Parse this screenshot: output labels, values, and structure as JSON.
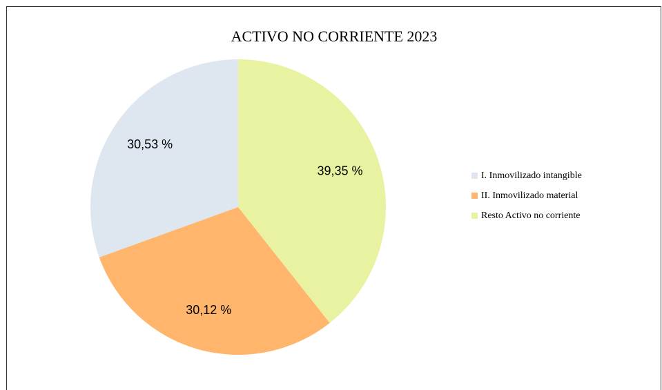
{
  "chart_data": {
    "type": "pie",
    "title": "ACTIVO NO CORRIENTE 2023",
    "categories": [
      "I. Inmovilizado intangible",
      "II. Inmovilizado material",
      "Resto Activo no corriente"
    ],
    "values": [
      30.53,
      30.12,
      39.35
    ],
    "value_labels": [
      "30,53 %",
      "30,12 %",
      "39,35 %"
    ],
    "colors": [
      "#dee6ef",
      "#ffb66c",
      "#e8f2a1"
    ],
    "legend": "right"
  }
}
